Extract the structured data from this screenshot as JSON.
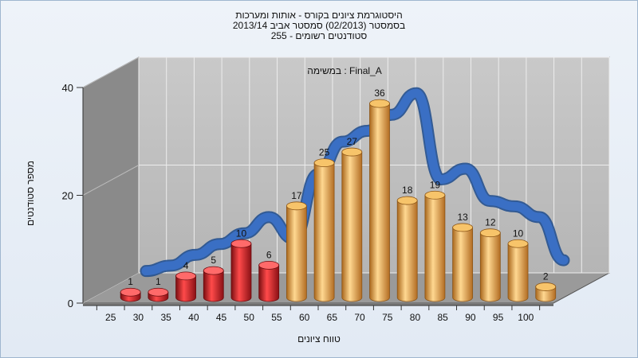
{
  "chart_data": {
    "type": "bar",
    "title_lines": [
      "היסטוגרמת ציונים בקורס - אותות ומערכות",
      "בסמסטר  (02/2013)  סמסטר אביב 2013/14",
      "סטודנטים רשומים - 255"
    ],
    "annotation": "במשימה : Final_A",
    "xlabel": "טווח ציונים",
    "ylabel": "מספר סטודנטים",
    "categories": [
      "25",
      "30",
      "35",
      "40",
      "45",
      "50",
      "55",
      "60",
      "65",
      "70",
      "75",
      "80",
      "85",
      "90",
      "95",
      "100"
    ],
    "values": [
      1,
      1,
      4,
      5,
      10,
      6,
      17,
      25,
      27,
      36,
      18,
      19,
      13,
      12,
      10,
      2
    ],
    "bar_colors": [
      "#e0262d",
      "#e0262d",
      "#e0262d",
      "#e0262d",
      "#e0262d",
      "#e0262d",
      "#eda94a",
      "#eda94a",
      "#eda94a",
      "#eda94a",
      "#eda94a",
      "#eda94a",
      "#eda94a",
      "#eda94a",
      "#eda94a",
      "#eda94a"
    ],
    "yticks": [
      0,
      20,
      40
    ],
    "ylim": [
      0,
      40
    ],
    "curve": [
      3,
      4,
      6,
      8,
      10,
      13,
      9,
      21,
      27,
      29,
      32,
      36,
      20,
      22,
      16,
      15,
      13,
      5
    ],
    "curve_color": "#3a6fc4",
    "grid": true,
    "legend": "none"
  }
}
